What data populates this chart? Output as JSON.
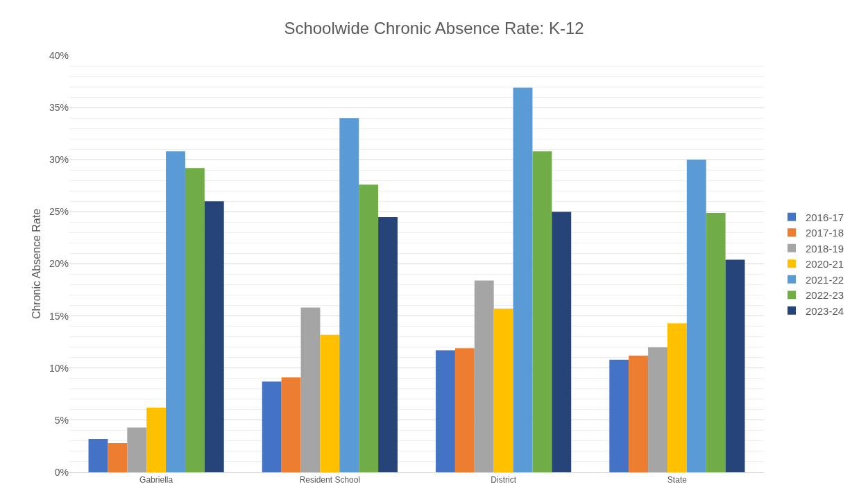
{
  "chart_data": {
    "type": "bar",
    "title": "Schoolwide Chronic Absence Rate: K-12",
    "ylabel": "Chronic Absence Rate",
    "categories": [
      "Gabriella",
      "Resident School",
      "District",
      "State"
    ],
    "series": [
      {
        "name": "2016-17",
        "color": "#4472c4",
        "values": [
          3.2,
          8.7,
          11.7,
          10.8
        ]
      },
      {
        "name": "2017-18",
        "color": "#ed7d31",
        "values": [
          2.8,
          9.1,
          11.9,
          11.2
        ]
      },
      {
        "name": "2018-19",
        "color": "#a5a5a5",
        "values": [
          4.3,
          15.8,
          18.4,
          12.0
        ]
      },
      {
        "name": "2020-21",
        "color": "#ffc000",
        "values": [
          6.2,
          13.2,
          15.7,
          14.3
        ]
      },
      {
        "name": "2021-22",
        "color": "#5b9bd5",
        "values": [
          30.8,
          34.0,
          36.9,
          30.0
        ]
      },
      {
        "name": "2022-23",
        "color": "#70ad47",
        "values": [
          29.2,
          27.6,
          30.8,
          24.9
        ]
      },
      {
        "name": "2023-24",
        "color": "#264478",
        "values": [
          26.0,
          24.5,
          25.0,
          20.4
        ]
      }
    ],
    "ylim": [
      0,
      40
    ],
    "yticks": [
      {
        "value": 0,
        "label": "0%"
      },
      {
        "value": 5,
        "label": "5%"
      },
      {
        "value": 10,
        "label": "10%"
      },
      {
        "value": 15,
        "label": "15%"
      },
      {
        "value": 20,
        "label": "20%"
      },
      {
        "value": 25,
        "label": "25%"
      },
      {
        "value": 30,
        "label": "30%"
      },
      {
        "value": 35,
        "label": "35%"
      },
      {
        "value": 40,
        "label": "40%"
      }
    ],
    "grid": "y",
    "legend": "right"
  }
}
